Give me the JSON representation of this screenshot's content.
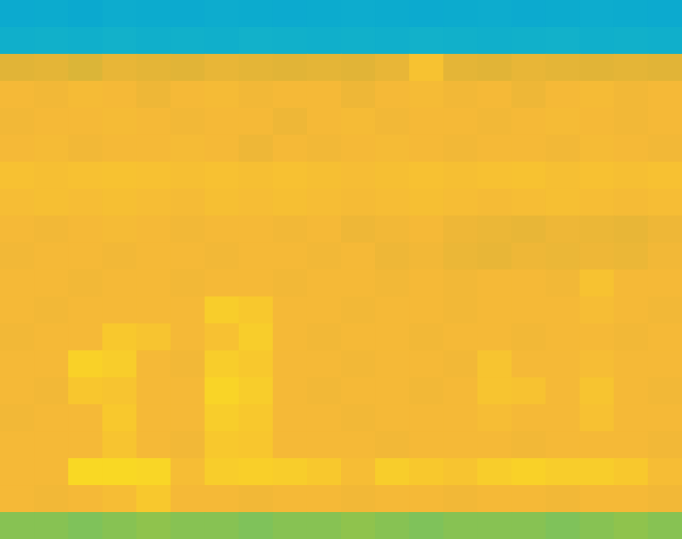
{
  "chart_data": {
    "type": "heatmap",
    "tick_labels": false,
    "zlim": [
      0,
      1
    ],
    "cells": [
      [
        0.24,
        0.25,
        0.23,
        0.26,
        0.25,
        0.24,
        0.26,
        0.25,
        0.24,
        0.25,
        0.26,
        0.25,
        0.24,
        0.25,
        0.26,
        0.24,
        0.25,
        0.26,
        0.25,
        0.24
      ],
      [
        0.3,
        0.31,
        0.3,
        0.32,
        0.3,
        0.31,
        0.3,
        0.32,
        0.31,
        0.3,
        0.31,
        0.3,
        0.32,
        0.31,
        0.3,
        0.31,
        0.32,
        0.3,
        0.31,
        0.3
      ],
      [
        0.74,
        0.75,
        0.73,
        0.76,
        0.75,
        0.74,
        0.76,
        0.75,
        0.74,
        0.75,
        0.74,
        0.76,
        0.85,
        0.75,
        0.74,
        0.76,
        0.75,
        0.74,
        0.75,
        0.74
      ],
      [
        0.8,
        0.79,
        0.81,
        0.8,
        0.78,
        0.8,
        0.81,
        0.79,
        0.8,
        0.8,
        0.78,
        0.8,
        0.81,
        0.79,
        0.8,
        0.78,
        0.8,
        0.81,
        0.79,
        0.8
      ],
      [
        0.79,
        0.8,
        0.8,
        0.81,
        0.8,
        0.79,
        0.8,
        0.8,
        0.78,
        0.8,
        0.81,
        0.79,
        0.8,
        0.8,
        0.79,
        0.8,
        0.81,
        0.8,
        0.79,
        0.8
      ],
      [
        0.8,
        0.81,
        0.79,
        0.8,
        0.8,
        0.81,
        0.8,
        0.78,
        0.8,
        0.79,
        0.8,
        0.81,
        0.8,
        0.79,
        0.8,
        0.8,
        0.79,
        0.81,
        0.8,
        0.79
      ],
      [
        0.84,
        0.83,
        0.84,
        0.85,
        0.84,
        0.83,
        0.84,
        0.83,
        0.84,
        0.83,
        0.82,
        0.83,
        0.84,
        0.83,
        0.84,
        0.85,
        0.83,
        0.84,
        0.83,
        0.84
      ],
      [
        0.82,
        0.83,
        0.82,
        0.83,
        0.82,
        0.81,
        0.83,
        0.82,
        0.83,
        0.82,
        0.81,
        0.82,
        0.83,
        0.82,
        0.81,
        0.82,
        0.83,
        0.82,
        0.81,
        0.82
      ],
      [
        0.8,
        0.79,
        0.8,
        0.81,
        0.8,
        0.79,
        0.8,
        0.8,
        0.79,
        0.8,
        0.78,
        0.79,
        0.8,
        0.78,
        0.77,
        0.76,
        0.78,
        0.77,
        0.76,
        0.78
      ],
      [
        0.79,
        0.8,
        0.8,
        0.79,
        0.8,
        0.8,
        0.79,
        0.8,
        0.8,
        0.79,
        0.8,
        0.78,
        0.79,
        0.77,
        0.76,
        0.78,
        0.77,
        0.78,
        0.77,
        0.79
      ],
      [
        0.8,
        0.8,
        0.79,
        0.8,
        0.8,
        0.79,
        0.8,
        0.8,
        0.79,
        0.8,
        0.8,
        0.79,
        0.8,
        0.79,
        0.8,
        0.8,
        0.79,
        0.85,
        0.8,
        0.8
      ],
      [
        0.8,
        0.79,
        0.8,
        0.8,
        0.8,
        0.8,
        0.9,
        0.88,
        0.8,
        0.8,
        0.79,
        0.8,
        0.8,
        0.79,
        0.8,
        0.8,
        0.8,
        0.82,
        0.8,
        0.79
      ],
      [
        0.79,
        0.8,
        0.8,
        0.88,
        0.86,
        0.8,
        0.84,
        0.9,
        0.8,
        0.79,
        0.8,
        0.8,
        0.79,
        0.8,
        0.8,
        0.79,
        0.8,
        0.8,
        0.79,
        0.8
      ],
      [
        0.8,
        0.8,
        0.92,
        0.9,
        0.8,
        0.79,
        0.9,
        0.88,
        0.8,
        0.8,
        0.79,
        0.8,
        0.8,
        0.79,
        0.86,
        0.8,
        0.8,
        0.82,
        0.8,
        0.8
      ],
      [
        0.8,
        0.79,
        0.87,
        0.86,
        0.8,
        0.8,
        0.93,
        0.9,
        0.8,
        0.79,
        0.8,
        0.8,
        0.79,
        0.8,
        0.86,
        0.85,
        0.8,
        0.86,
        0.8,
        0.79
      ],
      [
        0.79,
        0.8,
        0.8,
        0.88,
        0.8,
        0.8,
        0.9,
        0.88,
        0.8,
        0.8,
        0.79,
        0.8,
        0.8,
        0.8,
        0.82,
        0.8,
        0.8,
        0.84,
        0.8,
        0.8
      ],
      [
        0.8,
        0.8,
        0.8,
        0.86,
        0.8,
        0.79,
        0.88,
        0.87,
        0.8,
        0.8,
        0.8,
        0.79,
        0.8,
        0.8,
        0.8,
        0.79,
        0.8,
        0.8,
        0.8,
        0.79
      ],
      [
        0.8,
        0.8,
        0.95,
        0.95,
        0.94,
        0.82,
        0.9,
        0.91,
        0.9,
        0.88,
        0.82,
        0.9,
        0.88,
        0.86,
        0.9,
        0.92,
        0.9,
        0.9,
        0.88,
        0.82
      ],
      [
        0.8,
        0.79,
        0.8,
        0.82,
        0.88,
        0.8,
        0.8,
        0.79,
        0.8,
        0.8,
        0.79,
        0.8,
        0.8,
        0.79,
        0.8,
        0.8,
        0.79,
        0.8,
        0.8,
        0.79
      ],
      [
        0.6,
        0.6,
        0.59,
        0.6,
        0.61,
        0.6,
        0.6,
        0.59,
        0.6,
        0.6,
        0.61,
        0.6,
        0.59,
        0.6,
        0.6,
        0.6,
        0.59,
        0.6,
        0.61,
        0.6
      ]
    ]
  }
}
